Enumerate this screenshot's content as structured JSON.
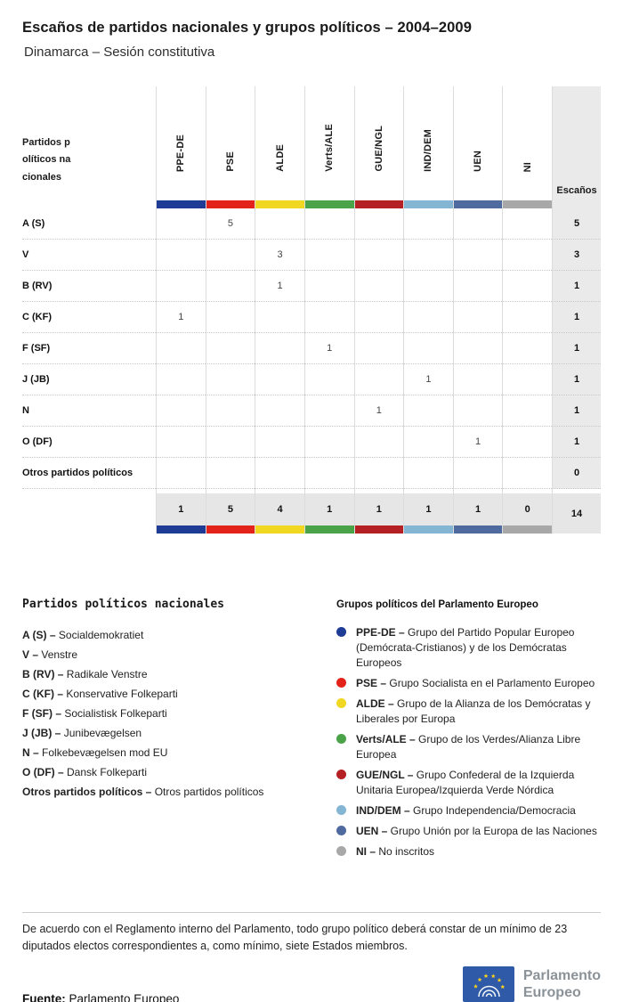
{
  "header": {
    "title": "Escaños de partidos nacionales y grupos políticos – 2004–2009",
    "subtitle": "Dinamarca – Sesión constitutiva"
  },
  "chart_data": {
    "type": "table",
    "title": "Escaños de partidos nacionales y grupos políticos – 2004–2009",
    "subtitle": "Dinamarca – Sesión constitutiva",
    "row_header": "Partidos políticos nacionales",
    "seats_column": "Escaños",
    "columns": [
      "PPE-DE",
      "PSE",
      "ALDE",
      "Verts/ALE",
      "GUE/NGL",
      "IND/DEM",
      "UEN",
      "NI"
    ],
    "column_colors": [
      "#1e3c96",
      "#e3231a",
      "#f0d722",
      "#4aa348",
      "#b52025",
      "#84b5d3",
      "#4e6a9e",
      "#a8a8a8"
    ],
    "rows": [
      {
        "label": "A (S)",
        "values": [
          null,
          5,
          null,
          null,
          null,
          null,
          null,
          null
        ],
        "seats": 5
      },
      {
        "label": "V",
        "values": [
          null,
          null,
          3,
          null,
          null,
          null,
          null,
          null
        ],
        "seats": 3
      },
      {
        "label": "B (RV)",
        "values": [
          null,
          null,
          1,
          null,
          null,
          null,
          null,
          null
        ],
        "seats": 1
      },
      {
        "label": "C (KF)",
        "values": [
          1,
          null,
          null,
          null,
          null,
          null,
          null,
          null
        ],
        "seats": 1
      },
      {
        "label": "F (SF)",
        "values": [
          null,
          null,
          null,
          1,
          null,
          null,
          null,
          null
        ],
        "seats": 1
      },
      {
        "label": "J (JB)",
        "values": [
          null,
          null,
          null,
          null,
          null,
          1,
          null,
          null
        ],
        "seats": 1
      },
      {
        "label": "N",
        "values": [
          null,
          null,
          null,
          null,
          1,
          null,
          null,
          null
        ],
        "seats": 1
      },
      {
        "label": "O (DF)",
        "values": [
          null,
          null,
          null,
          null,
          null,
          null,
          1,
          null
        ],
        "seats": 1
      },
      {
        "label": "Otros partidos políticos",
        "values": [
          null,
          null,
          null,
          null,
          null,
          null,
          null,
          null
        ],
        "seats": 0
      }
    ],
    "totals": {
      "values": [
        1,
        5,
        4,
        1,
        1,
        1,
        1,
        0
      ],
      "seats": 14
    }
  },
  "legend_parties": {
    "title": "Partidos políticos nacionales",
    "items": [
      {
        "abbr": "A (S)",
        "name": "Socialdemokratiet"
      },
      {
        "abbr": "V",
        "name": "Venstre"
      },
      {
        "abbr": "B (RV)",
        "name": "Radikale Venstre"
      },
      {
        "abbr": "C (KF)",
        "name": "Konservative Folkeparti"
      },
      {
        "abbr": "F (SF)",
        "name": "Socialistisk Folkeparti"
      },
      {
        "abbr": "J (JB)",
        "name": "Junibevægelsen"
      },
      {
        "abbr": "N",
        "name": "Folkebevægelsen mod EU"
      },
      {
        "abbr": "O (DF)",
        "name": "Dansk Folkeparti"
      },
      {
        "abbr": "Otros partidos políticos",
        "name": "Otros partidos políticos"
      }
    ]
  },
  "legend_groups": {
    "title": "Grupos políticos del Parlamento Europeo",
    "items": [
      {
        "abbr": "PPE-DE",
        "color": "#1e3c96",
        "name": "Grupo del Partido Popular Europeo (Demócrata-Cristianos) y de los Demócratas Europeos"
      },
      {
        "abbr": "PSE",
        "color": "#e3231a",
        "name": "Grupo Socialista en el Parlamento Europeo"
      },
      {
        "abbr": "ALDE",
        "color": "#f0d722",
        "name": "Grupo de la Alianza de los Demócratas y Liberales por Europa"
      },
      {
        "abbr": "Verts/ALE",
        "color": "#4aa348",
        "name": "Grupo de los Verdes/Alianza Libre Europea"
      },
      {
        "abbr": "GUE/NGL",
        "color": "#b52025",
        "name": "Grupo Confederal de la Izquierda Unitaria Europea/Izquierda Verde Nórdica"
      },
      {
        "abbr": "IND/DEM",
        "color": "#84b5d3",
        "name": "Grupo Independencia/Democracia"
      },
      {
        "abbr": "UEN",
        "color": "#4e6a9e",
        "name": "Grupo Unión por la Europa de las Naciones"
      },
      {
        "abbr": "NI",
        "color": "#a8a8a8",
        "name": "No inscritos"
      }
    ]
  },
  "footer": {
    "note": "De acuerdo con el Reglamento interno del Parlamento, todo grupo político deberá constar de un mínimo de 23 diputados electos correspondientes a, como mínimo, siete Estados miembros.",
    "source_label": "Fuente:",
    "source_value": "Parlamento Europeo",
    "logo_text_line1": "Parlamento",
    "logo_text_line2": "Europeo"
  }
}
